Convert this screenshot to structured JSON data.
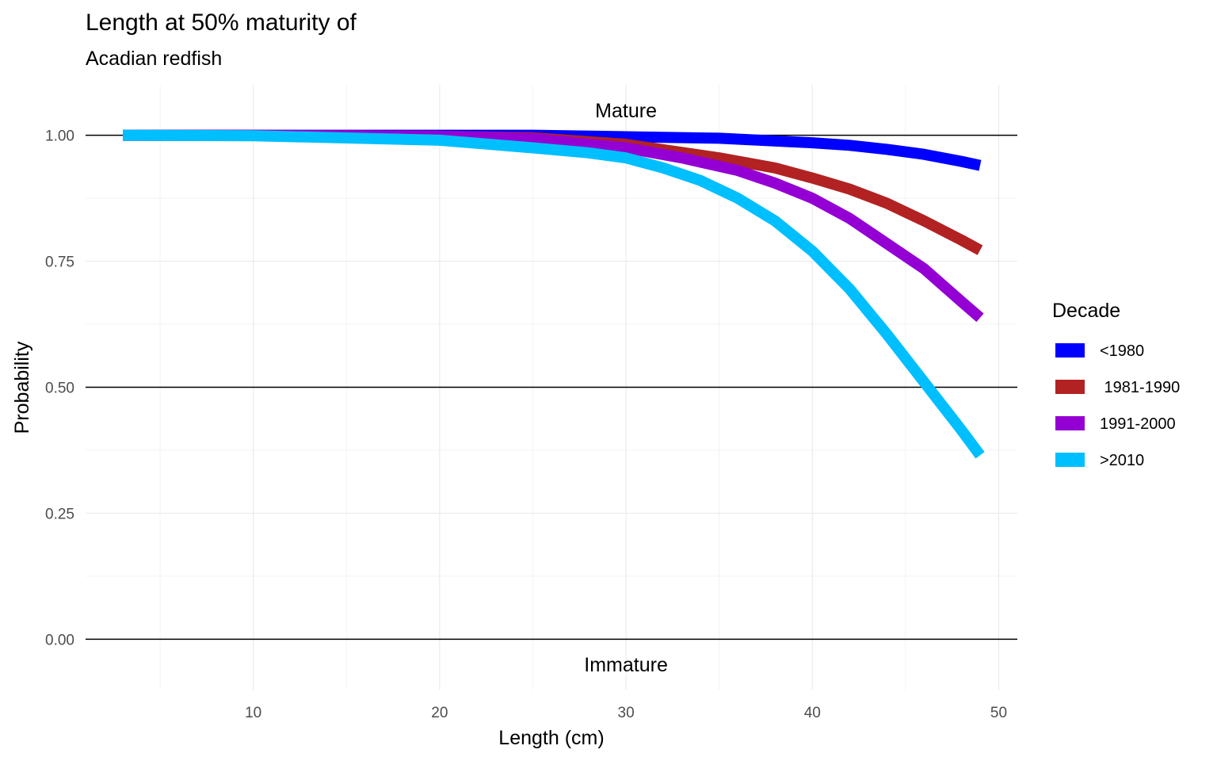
{
  "chart_data": {
    "type": "line",
    "title": "Length at 50% maturity of",
    "subtitle": "Acadian redfish",
    "xlabel": "Length (cm)",
    "ylabel": "Probability",
    "xlim": [
      1,
      51
    ],
    "ylim": [
      -0.1,
      1.1
    ],
    "xticks": [
      "10",
      "20",
      "30",
      "40",
      "50"
    ],
    "yticks": [
      "0.00",
      "0.25",
      "0.50",
      "0.75",
      "1.00"
    ],
    "hlines": [
      0,
      0.5,
      1
    ],
    "grid": true,
    "annotations": [
      {
        "text": "Mature",
        "x": 30,
        "y": 1.05
      },
      {
        "text": "Immature",
        "x": 30,
        "y": -0.05
      }
    ],
    "legend": {
      "title": "Decade",
      "position": "right"
    },
    "series": [
      {
        "name": "<1980",
        "color": "#0000ff",
        "x": [
          3,
          10,
          20,
          25,
          30,
          35,
          40,
          42,
          44,
          46,
          48,
          49
        ],
        "y": [
          1.0,
          1.0,
          1.0,
          1.0,
          0.997,
          0.994,
          0.985,
          0.98,
          0.972,
          0.962,
          0.948,
          0.94
        ]
      },
      {
        "name": " 1981-1990",
        "color": "#b22222",
        "x": [
          3,
          10,
          20,
          25,
          30,
          35,
          38,
          40,
          42,
          44,
          46,
          48,
          49
        ],
        "y": [
          1.0,
          1.0,
          0.998,
          0.995,
          0.982,
          0.955,
          0.935,
          0.915,
          0.893,
          0.865,
          0.83,
          0.792,
          0.772
        ]
      },
      {
        "name": "1991-2000",
        "color": "#9400d3",
        "x": [
          3,
          10,
          20,
          25,
          30,
          33,
          36,
          38,
          40,
          42,
          44,
          46,
          48,
          49
        ],
        "y": [
          1.0,
          1.0,
          0.998,
          0.993,
          0.975,
          0.955,
          0.93,
          0.905,
          0.875,
          0.835,
          0.785,
          0.735,
          0.67,
          0.638
        ]
      },
      {
        "name": ">2010",
        "color": "#00bfff",
        "x": [
          3,
          10,
          20,
          25,
          28,
          30,
          32,
          34,
          36,
          38,
          40,
          42,
          44,
          46,
          48,
          49
        ],
        "y": [
          1.0,
          0.999,
          0.99,
          0.975,
          0.965,
          0.955,
          0.935,
          0.91,
          0.875,
          0.83,
          0.77,
          0.695,
          0.605,
          0.51,
          0.415,
          0.365
        ]
      }
    ]
  }
}
